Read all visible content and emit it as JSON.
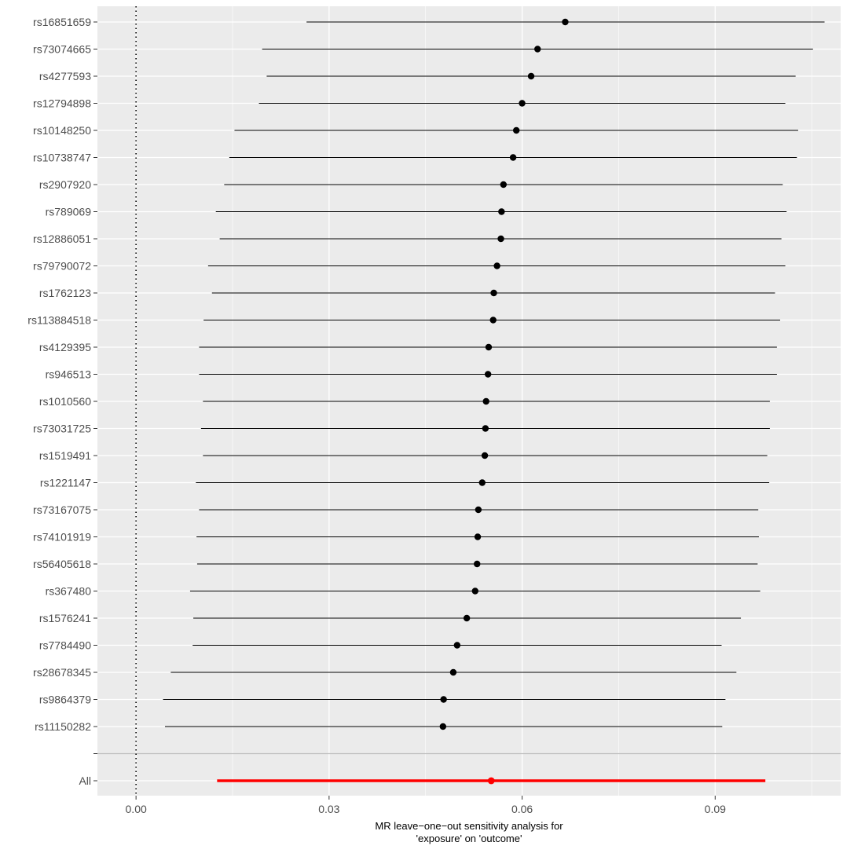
{
  "chart_data": {
    "type": "forest",
    "title": "",
    "xlabel": [
      "MR leave−one−out sensitivity analysis for",
      "'exposure' on 'outcome'"
    ],
    "ylabel": "",
    "xlim": [
      -0.006,
      0.1095
    ],
    "x_ticks": [
      0.0,
      0.03,
      0.06,
      0.09
    ],
    "x_tick_labels": [
      "0.00",
      "0.03",
      "0.06",
      "0.09"
    ],
    "reference_line_x": 0,
    "grid": true,
    "legend": "none",
    "colors": {
      "panel_bg": "#ebebeb",
      "grid": "#ffffff",
      "point": "#000000",
      "overall": "#ff0000",
      "separator": "#bebebe",
      "tick_text": "#4d4d4d"
    },
    "snps": [
      {
        "label": "rs16851659",
        "b": 0.0667,
        "lo": 0.0265,
        "hi": 0.107
      },
      {
        "label": "rs73074665",
        "b": 0.0624,
        "lo": 0.0196,
        "hi": 0.1052
      },
      {
        "label": "rs4277593",
        "b": 0.0614,
        "lo": 0.0203,
        "hi": 0.1025
      },
      {
        "label": "rs12794898",
        "b": 0.06,
        "lo": 0.0191,
        "hi": 0.1009
      },
      {
        "label": "rs10148250",
        "b": 0.0591,
        "lo": 0.0153,
        "hi": 0.1029
      },
      {
        "label": "rs10738747",
        "b": 0.0586,
        "lo": 0.0145,
        "hi": 0.1027
      },
      {
        "label": "rs2907920",
        "b": 0.0571,
        "lo": 0.0137,
        "hi": 0.1005
      },
      {
        "label": "rs789069",
        "b": 0.0568,
        "lo": 0.0124,
        "hi": 0.1011
      },
      {
        "label": "rs12886051",
        "b": 0.0567,
        "lo": 0.013,
        "hi": 0.1003
      },
      {
        "label": "rs79790072",
        "b": 0.0561,
        "lo": 0.0112,
        "hi": 0.1009
      },
      {
        "label": "rs1762123",
        "b": 0.0556,
        "lo": 0.0118,
        "hi": 0.0993
      },
      {
        "label": "rs113884518",
        "b": 0.0555,
        "lo": 0.0105,
        "hi": 0.1001
      },
      {
        "label": "rs4129395",
        "b": 0.0548,
        "lo": 0.0098,
        "hi": 0.0996
      },
      {
        "label": "rs946513",
        "b": 0.0547,
        "lo": 0.0098,
        "hi": 0.0996
      },
      {
        "label": "rs1010560",
        "b": 0.0544,
        "lo": 0.0104,
        "hi": 0.0985
      },
      {
        "label": "rs73031725",
        "b": 0.0543,
        "lo": 0.0101,
        "hi": 0.0985
      },
      {
        "label": "rs1519491",
        "b": 0.0542,
        "lo": 0.0104,
        "hi": 0.0981
      },
      {
        "label": "rs1221147",
        "b": 0.0538,
        "lo": 0.0093,
        "hi": 0.0984
      },
      {
        "label": "rs73167075",
        "b": 0.0532,
        "lo": 0.0098,
        "hi": 0.0967
      },
      {
        "label": "rs74101919",
        "b": 0.0531,
        "lo": 0.0094,
        "hi": 0.0968
      },
      {
        "label": "rs56405618",
        "b": 0.053,
        "lo": 0.0095,
        "hi": 0.0966
      },
      {
        "label": "rs367480",
        "b": 0.0527,
        "lo": 0.0084,
        "hi": 0.097
      },
      {
        "label": "rs1576241",
        "b": 0.0514,
        "lo": 0.0089,
        "hi": 0.094
      },
      {
        "label": "rs7784490",
        "b": 0.0499,
        "lo": 0.0088,
        "hi": 0.091
      },
      {
        "label": "rs28678345",
        "b": 0.0493,
        "lo": 0.0054,
        "hi": 0.0933
      },
      {
        "label": "rs9864379",
        "b": 0.0478,
        "lo": 0.0042,
        "hi": 0.0916
      },
      {
        "label": "rs11150282",
        "b": 0.0477,
        "lo": 0.0045,
        "hi": 0.0911
      }
    ],
    "overall": {
      "label": "All",
      "b": 0.0552,
      "lo": 0.0126,
      "hi": 0.0978
    }
  }
}
